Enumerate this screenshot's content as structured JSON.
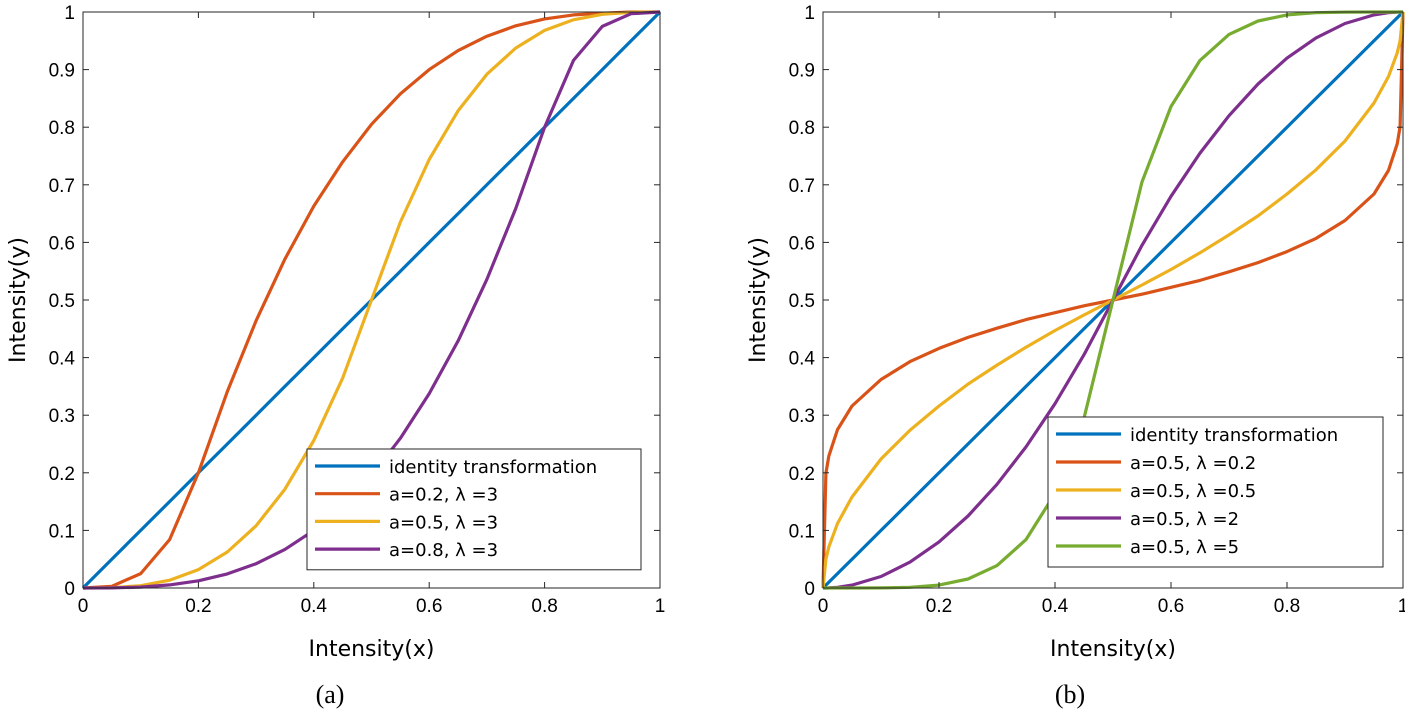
{
  "chart_data": [
    {
      "type": "line",
      "caption": "(a)",
      "xlabel": "Intensity(x)",
      "ylabel": "Intensity(y)",
      "xlim": [
        0,
        1
      ],
      "ylim": [
        0,
        1
      ],
      "xticks": [
        "0",
        "0.2",
        "0.4",
        "0.6",
        "0.8",
        "1"
      ],
      "yticks": [
        "0",
        "0.1",
        "0.2",
        "0.3",
        "0.4",
        "0.5",
        "0.6",
        "0.7",
        "0.8",
        "0.9",
        "1"
      ],
      "grid": false,
      "legend_position": "bottom-right",
      "x": [
        0,
        0.05,
        0.1,
        0.15,
        0.2,
        0.25,
        0.3,
        0.35,
        0.4,
        0.45,
        0.5,
        0.55,
        0.6,
        0.65,
        0.7,
        0.75,
        0.8,
        0.85,
        0.9,
        0.95,
        1
      ],
      "series": [
        {
          "name": "identity transformation",
          "color": "#0072BD",
          "values": [
            0,
            0.05,
            0.1,
            0.15,
            0.2,
            0.25,
            0.3,
            0.35,
            0.4,
            0.45,
            0.5,
            0.55,
            0.6,
            0.65,
            0.7,
            0.75,
            0.8,
            0.85,
            0.9,
            0.95,
            1
          ]
        },
        {
          "name": "a=0.2,  λ =3",
          "color": "#D95319",
          "values": [
            0,
            0.003,
            0.025,
            0.084,
            0.2,
            0.341,
            0.464,
            0.571,
            0.663,
            0.74,
            0.805,
            0.858,
            0.9,
            0.933,
            0.958,
            0.976,
            0.988,
            0.995,
            0.998,
            1,
            1
          ]
        },
        {
          "name": "a=0.5,  λ =3",
          "color": "#EDB120",
          "values": [
            0,
            0.0005,
            0.004,
            0.0135,
            0.032,
            0.0625,
            0.108,
            0.1715,
            0.256,
            0.3645,
            0.5,
            0.6355,
            0.744,
            0.8285,
            0.892,
            0.9375,
            0.968,
            0.9865,
            0.996,
            0.9995,
            1
          ]
        },
        {
          "name": "a=0.8,  λ =3",
          "color": "#7E2F8E",
          "values": [
            0,
            0.0002,
            0.0016,
            0.0053,
            0.0125,
            0.0244,
            0.0422,
            0.067,
            0.1,
            0.1424,
            0.195,
            0.26,
            0.3375,
            0.429,
            0.536,
            0.659,
            0.8,
            0.916,
            0.975,
            0.997,
            1
          ]
        }
      ]
    },
    {
      "type": "line",
      "caption": "(b)",
      "xlabel": "Intensity(x)",
      "ylabel": "Intensity(y)",
      "xlim": [
        0,
        1
      ],
      "ylim": [
        0,
        1
      ],
      "xticks": [
        "0",
        "0.2",
        "0.4",
        "0.6",
        "0.8",
        "1"
      ],
      "yticks": [
        "0",
        "0.1",
        "0.2",
        "0.3",
        "0.4",
        "0.5",
        "0.6",
        "0.7",
        "0.8",
        "0.9",
        "1"
      ],
      "grid": false,
      "legend_position": "bottom-right",
      "x": [
        0,
        0.005,
        0.01,
        0.025,
        0.05,
        0.1,
        0.15,
        0.2,
        0.25,
        0.3,
        0.35,
        0.4,
        0.45,
        0.5,
        0.55,
        0.6,
        0.65,
        0.7,
        0.75,
        0.8,
        0.85,
        0.9,
        0.95,
        0.975,
        0.99,
        0.995,
        1
      ],
      "series": [
        {
          "name": "identity transformation",
          "color": "#0072BD",
          "values": [
            0,
            0.005,
            0.01,
            0.025,
            0.05,
            0.1,
            0.15,
            0.2,
            0.25,
            0.3,
            0.35,
            0.4,
            0.45,
            0.5,
            0.55,
            0.6,
            0.65,
            0.7,
            0.75,
            0.8,
            0.85,
            0.9,
            0.95,
            0.975,
            0.99,
            0.995,
            1
          ]
        },
        {
          "name": "a=0.5,  λ =0.2",
          "color": "#D95319",
          "values": [
            0,
            0.199,
            0.229,
            0.275,
            0.316,
            0.362,
            0.393,
            0.416,
            0.435,
            0.451,
            0.466,
            0.478,
            0.49,
            0.5,
            0.51,
            0.522,
            0.534,
            0.549,
            0.565,
            0.584,
            0.607,
            0.638,
            0.684,
            0.725,
            0.771,
            0.801,
            1
          ]
        },
        {
          "name": "a=0.5,  λ =0.5",
          "color": "#EDB120",
          "values": [
            0,
            0.05,
            0.071,
            0.112,
            0.158,
            0.224,
            0.274,
            0.316,
            0.354,
            0.387,
            0.418,
            0.447,
            0.474,
            0.5,
            0.526,
            0.553,
            0.582,
            0.613,
            0.646,
            0.684,
            0.726,
            0.776,
            0.842,
            0.888,
            0.929,
            0.95,
            1
          ]
        },
        {
          "name": "a=0.5,  λ =2",
          "color": "#7E2F8E",
          "values": [
            0,
            5e-05,
            0.0002,
            0.00125,
            0.005,
            0.02,
            0.045,
            0.08,
            0.125,
            0.18,
            0.245,
            0.32,
            0.405,
            0.5,
            0.595,
            0.68,
            0.755,
            0.82,
            0.875,
            0.92,
            0.955,
            0.98,
            0.995,
            0.99875,
            0.9998,
            0.99995,
            1
          ]
        },
        {
          "name": "a=0.5,  λ =5",
          "color": "#77AC30",
          "values": [
            0,
            0,
            0,
            0,
            5e-06,
            0.00016,
            0.0012,
            0.0051,
            0.0156,
            0.0389,
            0.084,
            0.164,
            0.295,
            0.5,
            0.705,
            0.836,
            0.916,
            0.9611,
            0.9844,
            0.9949,
            0.9988,
            0.99984,
            1,
            1,
            1,
            1,
            1
          ]
        }
      ]
    }
  ]
}
